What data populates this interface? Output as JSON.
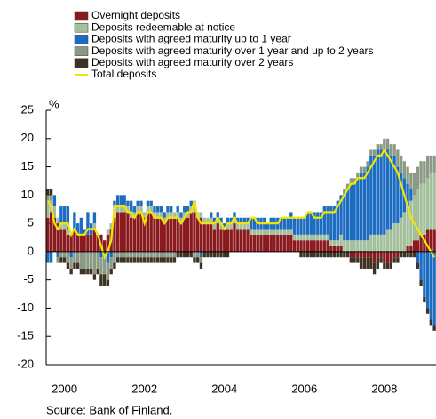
{
  "chart_data": {
    "type": "bar",
    "stacked": true,
    "y_label": "%",
    "source": "Source: Bank of Finland.",
    "categories": [
      null,
      null,
      null,
      null,
      null,
      "2000",
      null,
      null,
      null,
      null,
      null,
      null,
      null,
      null,
      null,
      null,
      null,
      null,
      null,
      null,
      null,
      null,
      null,
      null,
      null,
      null,
      null,
      null,
      null,
      "2002",
      null,
      null,
      null,
      null,
      null,
      null,
      null,
      null,
      null,
      null,
      null,
      null,
      null,
      null,
      null,
      null,
      null,
      null,
      null,
      null,
      null,
      null,
      null,
      "2004",
      null,
      null,
      null,
      null,
      null,
      null,
      null,
      null,
      null,
      null,
      null,
      null,
      null,
      null,
      null,
      null,
      null,
      null,
      null,
      null,
      null,
      null,
      null,
      "2006",
      null,
      null,
      null,
      null,
      null,
      null,
      null,
      null,
      null,
      null,
      null,
      null,
      null,
      null,
      null,
      null,
      null,
      null,
      null,
      null,
      null,
      null,
      null,
      "2008",
      null,
      null,
      null,
      null,
      null,
      null,
      null,
      null,
      null,
      null,
      null,
      null,
      null,
      null,
      null
    ],
    "ylim": [
      -20,
      25
    ],
    "yticks": [
      -20,
      -15,
      -10,
      -5,
      0,
      5,
      10,
      15,
      20,
      25
    ],
    "series": [
      {
        "name": "Overnight deposits",
        "color": "#8b1a1f",
        "values": [
          6,
          7,
          6,
          5,
          4,
          4,
          3,
          3,
          4,
          3,
          3,
          3,
          3,
          3,
          4,
          3,
          3,
          2,
          3,
          4,
          6,
          7,
          7,
          7,
          7,
          6,
          6,
          7,
          7,
          6,
          7,
          7,
          6,
          6,
          6,
          5,
          6,
          6,
          6,
          6,
          5,
          6,
          6,
          7,
          7,
          6,
          6,
          5,
          5,
          5,
          4,
          5,
          4,
          4,
          4,
          4,
          5,
          4,
          4,
          4,
          4,
          3,
          3,
          3,
          3,
          3,
          3,
          3,
          3,
          3,
          3,
          3,
          3,
          3,
          2,
          2,
          2,
          2,
          2,
          2,
          2,
          2,
          2,
          2,
          2,
          1,
          1,
          1,
          1,
          0,
          0,
          -1,
          -1,
          -1,
          -1,
          -1,
          -1,
          -1,
          -2,
          -1,
          -1,
          -2,
          -2,
          -2,
          -1,
          -1,
          0,
          0,
          1,
          1,
          2,
          2,
          3,
          3,
          4,
          4,
          4
        ]
      },
      {
        "name": "Deposits redeemable at notice",
        "color": "#a3bf9c",
        "values": [
          3,
          2,
          2,
          1,
          1,
          1,
          1,
          0,
          0,
          0,
          0,
          0,
          0,
          0,
          1,
          0,
          0,
          0,
          1,
          1,
          2,
          1,
          1,
          1,
          1,
          1,
          1,
          1,
          1,
          1,
          1,
          1,
          1,
          1,
          1,
          1,
          1,
          1,
          1,
          1,
          1,
          1,
          1,
          1,
          1,
          1,
          1,
          1,
          1,
          1,
          1,
          1,
          1,
          0,
          1,
          1,
          1,
          1,
          1,
          1,
          1,
          1,
          1,
          1,
          1,
          1,
          1,
          1,
          1,
          1,
          1,
          1,
          1,
          1,
          1,
          1,
          1,
          1,
          1,
          1,
          1,
          1,
          1,
          1,
          1,
          1,
          1,
          1,
          2,
          2,
          2,
          2,
          2,
          2,
          2,
          2,
          2,
          3,
          3,
          3,
          3,
          3,
          4,
          4,
          5,
          5,
          6,
          7,
          7,
          8,
          8,
          9,
          9,
          9,
          9,
          10,
          10
        ]
      },
      {
        "name": "Deposits with agreed maturity up to 1 year",
        "color": "#1c6cc2",
        "values": [
          -2,
          -2,
          2,
          -1,
          3,
          3,
          4,
          -1,
          3,
          2,
          3,
          1,
          4,
          2,
          2,
          0,
          -1,
          -1,
          -2,
          -1,
          1,
          2,
          2,
          2,
          1,
          2,
          1,
          1,
          1,
          0,
          1,
          1,
          1,
          1,
          1,
          1,
          1,
          1,
          0,
          1,
          1,
          1,
          1,
          1,
          1,
          0,
          -1,
          0,
          0,
          1,
          1,
          1,
          1,
          1,
          1,
          1,
          1,
          1,
          1,
          1,
          1,
          2,
          2,
          2,
          2,
          2,
          1,
          2,
          2,
          2,
          2,
          2,
          2,
          3,
          3,
          3,
          3,
          3,
          4,
          4,
          4,
          4,
          4,
          5,
          5,
          6,
          6,
          7,
          7,
          8,
          9,
          10,
          10,
          11,
          12,
          12,
          13,
          14,
          14,
          15,
          15,
          15,
          14,
          13,
          12,
          10,
          8,
          6,
          4,
          2,
          0,
          -2,
          -5,
          -8,
          -10,
          -12,
          -13
        ]
      },
      {
        "name": "Deposits with agreed maturity over 1 year and up to 2 years",
        "color": "#8a9a86",
        "values": [
          1,
          1,
          0,
          -1,
          -1,
          -1,
          -2,
          -2,
          -2,
          -2,
          -3,
          -3,
          -3,
          -3,
          -4,
          -3,
          -3,
          -3,
          -3,
          -2,
          -2,
          -1,
          -1,
          -1,
          -1,
          -1,
          -1,
          -1,
          -1,
          -1,
          -1,
          -1,
          -1,
          -1,
          -1,
          -1,
          -1,
          -1,
          -1,
          0,
          0,
          0,
          0,
          0,
          -1,
          -1,
          -1,
          0,
          0,
          0,
          0,
          0,
          0,
          0,
          0,
          0,
          0,
          0,
          0,
          0,
          0,
          0,
          0,
          0,
          0,
          0,
          0,
          0,
          0,
          0,
          0,
          0,
          0,
          0,
          0,
          0,
          0,
          0,
          0,
          0,
          0,
          0,
          0,
          0,
          0,
          0,
          0,
          0,
          0,
          1,
          1,
          1,
          1,
          1,
          1,
          1,
          1,
          1,
          1,
          1,
          1,
          2,
          2,
          2,
          2,
          3,
          3,
          3,
          3,
          3,
          4,
          4,
          4,
          4,
          4,
          3,
          3
        ]
      },
      {
        "name": "Deposits with agreed maturity over 2 years",
        "color": "#3e3222",
        "values": [
          1,
          1,
          0,
          0,
          -1,
          -1,
          -1,
          -1,
          -1,
          -1,
          -1,
          -1,
          -1,
          -1,
          -1,
          -1,
          -2,
          -2,
          -1,
          -1,
          -1,
          -1,
          -1,
          -1,
          -1,
          -1,
          -1,
          -1,
          -1,
          -1,
          -1,
          -1,
          -1,
          -1,
          -1,
          -1,
          -1,
          -1,
          -1,
          -1,
          -1,
          -1,
          -1,
          -1,
          -1,
          -1,
          -1,
          -1,
          -1,
          -1,
          -1,
          -1,
          -1,
          -1,
          -1,
          0,
          0,
          0,
          0,
          0,
          0,
          0,
          0,
          0,
          0,
          0,
          0,
          0,
          0,
          0,
          0,
          0,
          0,
          0,
          0,
          0,
          -1,
          -1,
          -1,
          -1,
          -1,
          -1,
          -1,
          -1,
          -1,
          -1,
          -1,
          -1,
          -1,
          -1,
          -1,
          -1,
          -1,
          -1,
          -2,
          -2,
          -2,
          -2,
          -2,
          -2,
          -1,
          -1,
          -1,
          -1,
          -1,
          -1,
          -1,
          -1,
          -1,
          -1,
          -1,
          -1,
          -1,
          -1,
          -1,
          -1,
          -1
        ]
      },
      {
        "name": "Total deposits",
        "color": "#f2e600",
        "type": "line",
        "values": [
          9,
          8,
          5,
          4,
          5,
          5,
          5,
          3,
          4,
          3,
          3,
          3,
          4,
          4,
          4,
          3,
          1,
          -1,
          0,
          2,
          8,
          8,
          8,
          8,
          7,
          7,
          6,
          7,
          7,
          5,
          7,
          7,
          6,
          6,
          6,
          5,
          6,
          6,
          6,
          6,
          5,
          6,
          7,
          7,
          9,
          6,
          5,
          5,
          5,
          5,
          5,
          6,
          5,
          4,
          5,
          5,
          6,
          5,
          5,
          5,
          5,
          6,
          6,
          5,
          5,
          5,
          5,
          5,
          5,
          5,
          6,
          6,
          6,
          6,
          6,
          6,
          6,
          6,
          7,
          7,
          6,
          6,
          6,
          7,
          7,
          7,
          7,
          8,
          9,
          10,
          11,
          12,
          12,
          13,
          13,
          13,
          14,
          15,
          16,
          17,
          17,
          18,
          17,
          16,
          15,
          14,
          12,
          10,
          8,
          6,
          5,
          4,
          3,
          2,
          1,
          0,
          -1
        ]
      }
    ]
  }
}
